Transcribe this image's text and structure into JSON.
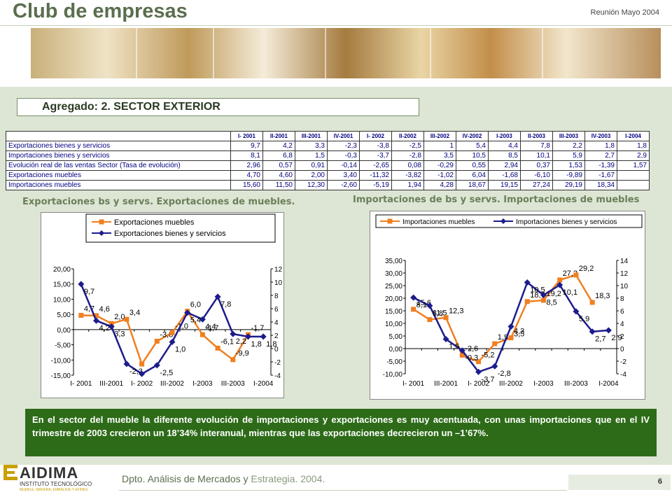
{
  "header": {
    "title": "Club de empresas",
    "date": "Reunión Mayo 2004"
  },
  "section": {
    "title": "Agregado: 2. SECTOR EXTERIOR"
  },
  "table": {
    "columns": [
      "I- 2001",
      "II-2001",
      "III-2001",
      "IV-2001",
      "I- 2002",
      "II-2002",
      "III-2002",
      "IV-2002",
      "I-2003",
      "II-2003",
      "III-2003",
      "IV-2003",
      "I-2004"
    ],
    "rows": [
      {
        "label": "Exportaciones bienes y servicios",
        "values": [
          "9,7",
          "4,2",
          "3,3",
          "-2,3",
          "-3,8",
          "-2,5",
          "1",
          "5,4",
          "4,4",
          "7,8",
          "2,2",
          "1,8",
          "1,8"
        ]
      },
      {
        "label": "Importaciones bienes y servicios",
        "values": [
          "8,1",
          "6,8",
          "1,5",
          "-0,3",
          "-3,7",
          "-2,8",
          "3,5",
          "10,5",
          "8,5",
          "10,1",
          "5,9",
          "2,7",
          "2,9"
        ]
      },
      {
        "label": "Evolución real de las ventas Sector (Tasa de evolución)",
        "values": [
          "2,96",
          "0,57",
          "0,91",
          "-0,14",
          "-2,65",
          "0,08",
          "-0,29",
          "0,55",
          "2,94",
          "0,37",
          "1,53",
          "-1,39",
          "1,57"
        ]
      },
      {
        "label": "Exportaciones muebles",
        "values": [
          "4,70",
          "4,60",
          "2,00",
          "3,40",
          "-11,32",
          "-3,82",
          "-1,02",
          "6,04",
          "-1,68",
          "-6,10",
          "-9,89",
          "-1,67",
          ""
        ]
      },
      {
        "label": "Importaciones muebles",
        "values": [
          "15,60",
          "11,50",
          "12,30",
          "-2,60",
          "-5,19",
          "1,94",
          "4,28",
          "18,67",
          "19,15",
          "27,24",
          "29,19",
          "18,34",
          ""
        ]
      }
    ]
  },
  "chart_data": [
    {
      "type": "line",
      "title": "Exportaciones bs y servs. Exportaciones de muebles.",
      "x": [
        "I- 2001",
        "II-2001",
        "III-2001",
        "IV-2001",
        "I- 2002",
        "II-2002",
        "III-2002",
        "IV-2002",
        "I-2003",
        "II-2003",
        "III-2003",
        "IV-2003",
        "I-2004"
      ],
      "x_tick_labels": [
        "I- 2001",
        "III-2001",
        "I- 2002",
        "III-2002",
        "I-2003",
        "III-2003",
        "I-2004"
      ],
      "left_axis": {
        "ylim": [
          -15,
          20
        ],
        "ticks": [
          "-15,00",
          "-10,00",
          "-5,00",
          "0,00",
          "5,00",
          "10,00",
          "15,00",
          "20,00"
        ]
      },
      "right_axis": {
        "ylim": [
          -4,
          12
        ],
        "ticks": [
          "-4",
          "-2",
          "0",
          "2",
          "4",
          "6",
          "8",
          "10",
          "12"
        ]
      },
      "legend_position": "top",
      "series": [
        {
          "name": "Exportaciones muebles",
          "axis": "left",
          "color": "#f07f20",
          "marker": "square",
          "values": [
            4.7,
            4.6,
            2.0,
            3.4,
            -11.32,
            -3.82,
            -1.02,
            6.04,
            -1.68,
            -6.1,
            -9.89,
            -1.67,
            null
          ],
          "labels": [
            "4,7",
            "4,6",
            "2,0",
            "3,4",
            "",
            "-3,8",
            "-1,0",
            "6,0",
            "-1,7",
            "-6,1",
            "-9,9",
            "-1,7",
            ""
          ]
        },
        {
          "name": "Exportaciones bienes y servicios",
          "axis": "right",
          "color": "#1c1c8c",
          "marker": "diamond",
          "values": [
            9.7,
            4.2,
            3.3,
            -2.3,
            -3.8,
            -2.5,
            1.0,
            5.4,
            4.4,
            7.8,
            2.2,
            1.8,
            1.8
          ],
          "labels": [
            "9,7",
            "4,2",
            "3,3",
            "-2,3",
            "",
            "-2,5",
            "1,0",
            "5,4",
            "4,4",
            "7,8",
            "2,2",
            "1,8",
            "1,8"
          ]
        }
      ]
    },
    {
      "type": "line",
      "title": "Importaciones de bs y servs. Importaciones de muebles",
      "x": [
        "I- 2001",
        "II-2001",
        "III-2001",
        "IV-2001",
        "I- 2002",
        "II-2002",
        "III-2002",
        "IV-2002",
        "I-2003",
        "II-2003",
        "III-2003",
        "IV-2003",
        "I-2004"
      ],
      "x_tick_labels": [
        "I- 2001",
        "III-2001",
        "I- 2002",
        "III-2002",
        "I-2003",
        "III-2003",
        "I-2004"
      ],
      "left_axis": {
        "ylim": [
          -10,
          35
        ],
        "ticks": [
          "-10,00",
          "-5,00",
          "0,00",
          "5,00",
          "10,00",
          "15,00",
          "20,00",
          "25,00",
          "30,00",
          "35,00"
        ]
      },
      "right_axis": {
        "ylim": [
          -4,
          14
        ],
        "ticks": [
          "-4",
          "-2",
          "0",
          "2",
          "4",
          "6",
          "8",
          "10",
          "12",
          "14"
        ]
      },
      "legend_position": "top",
      "series": [
        {
          "name": "Importaciones muebles",
          "axis": "left",
          "color": "#f07f20",
          "marker": "square",
          "values": [
            15.6,
            11.5,
            12.3,
            -2.6,
            -5.19,
            1.94,
            4.28,
            18.67,
            19.15,
            27.24,
            29.19,
            18.34,
            null
          ],
          "labels": [
            "15,6",
            "11,5",
            "12,3",
            "-2,6",
            "-5,2",
            "1,9",
            "4,3",
            "18,7",
            "19,2",
            "27,2",
            "29,2",
            "18,3",
            ""
          ]
        },
        {
          "name": "Importaciones bienes y servicios",
          "axis": "right",
          "color": "#1c1c8c",
          "marker": "diamond",
          "values": [
            8.1,
            6.8,
            1.5,
            -0.3,
            -3.7,
            -2.8,
            3.5,
            10.5,
            8.5,
            10.1,
            5.9,
            2.7,
            2.9
          ],
          "labels": [
            "8,1",
            "6,8",
            "1,5",
            "-0,3",
            "-3,7",
            "-2,8",
            "3,5",
            "10,5",
            "8,5",
            "10,1",
            "5,9",
            "2,7",
            "2,9"
          ]
        }
      ]
    }
  ],
  "body_text": "En el sector del mueble la diferente evolución de importaciones y exportaciones es muy acentuada, con unas importaciones que en el IV trimestre de 2003 crecieron un 18’34% interanual, mientras que las exportaciones decrecieron un –1’67%.",
  "footer": {
    "dept": "Dpto. Análisis de Mercados y",
    "dept_rest": "Estrategia. 2004.",
    "page": "6"
  },
  "logo": {
    "name": "AIDIMA",
    "sub1": "INSTITUTO TECNOLÓGICO",
    "sub2": "MUEBLE, MADERA, EMBALAJE Y AFINES"
  },
  "colors": {
    "accent": "#2d6b18",
    "orange": "#f07f20",
    "navy": "#1c1c8c",
    "background": "#dde6d4"
  }
}
